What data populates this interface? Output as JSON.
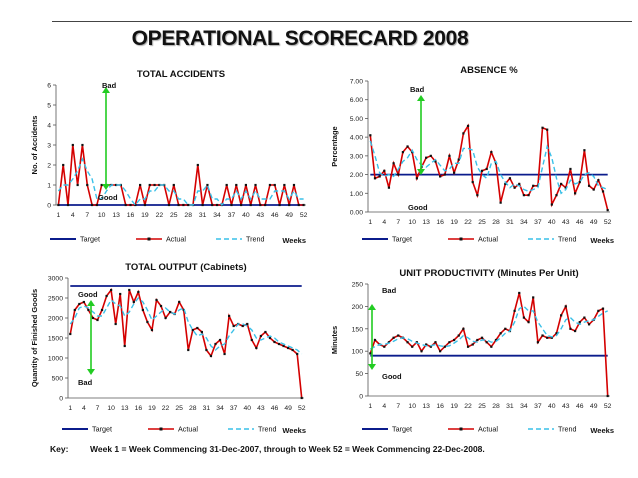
{
  "page": {
    "title": "OPERATIONAL SCORECARD 2008",
    "key_label": "Key:",
    "key_text": "Week 1 = Week Commencing 31-Dec-2007, through to Week 52 = Week Commencing 22-Dec-2008."
  },
  "colors": {
    "target": "#0b1c8c",
    "actual": "#d40000",
    "marker": "#111111",
    "trend": "#39c0e8",
    "arrow": "#22cc22"
  },
  "chart_data": [
    {
      "id": "accidents",
      "type": "line",
      "title": "TOTAL ACCIDENTS",
      "xlabel": "Weeks",
      "ylabel": "No. of Accidents",
      "ylim": [
        0,
        6
      ],
      "yticks": [
        "0",
        "1",
        "2",
        "3",
        "4",
        "5",
        "6"
      ],
      "xticks": [
        "1",
        "4",
        "7",
        "10",
        "13",
        "16",
        "19",
        "22",
        "25",
        "28",
        "31",
        "34",
        "37",
        "40",
        "43",
        "46",
        "49",
        "52"
      ],
      "legend": [
        "Target",
        "Actual",
        "Trend"
      ],
      "annotations": {
        "bad": "Bad",
        "good": "Good"
      },
      "series": [
        {
          "name": "Target",
          "values": [
            0,
            0,
            0,
            0,
            0,
            0,
            0,
            0,
            0,
            0,
            0,
            0,
            0,
            0,
            0,
            0,
            0,
            0,
            0,
            0,
            0,
            0,
            0,
            0,
            0,
            0,
            0,
            0,
            0,
            0,
            0,
            0,
            0,
            0,
            0,
            0,
            0,
            0,
            0,
            0,
            0,
            0,
            0,
            0,
            0,
            0,
            0,
            0,
            0,
            0,
            0,
            0
          ]
        },
        {
          "name": "Actual",
          "values": [
            0,
            2,
            0,
            3,
            1,
            3,
            1,
            0,
            0,
            1,
            1,
            1,
            1,
            1,
            0,
            0,
            0,
            1,
            0,
            1,
            1,
            1,
            1,
            0,
            1,
            0,
            0,
            0,
            0,
            2,
            0,
            1,
            0,
            0,
            0,
            1,
            0,
            1,
            0,
            1,
            0,
            1,
            0,
            0,
            1,
            1,
            0,
            1,
            0,
            1,
            0,
            0
          ]
        },
        {
          "name": "Trend",
          "values": [
            0.7,
            1.0,
            1.0,
            1.3,
            1.7,
            2.3,
            1.7,
            1.3,
            0.3,
            0.3,
            0.7,
            1.0,
            1.0,
            1.0,
            0.7,
            0.3,
            0,
            0.3,
            0.3,
            0.7,
            0.7,
            1.0,
            1.0,
            0.7,
            0.7,
            0.3,
            0.3,
            0,
            0,
            0.7,
            0.7,
            1.0,
            0.3,
            0.3,
            0,
            0.3,
            0.3,
            0.7,
            0.3,
            0.7,
            0.3,
            0.7,
            0.3,
            0.3,
            0.3,
            0.7,
            0.7,
            0.7,
            0.3,
            0.7,
            0.3,
            0.3
          ]
        }
      ]
    },
    {
      "id": "absence",
      "type": "line",
      "title": "ABSENCE %",
      "xlabel": "Weeks",
      "ylabel": "Percentage",
      "ylim": [
        0,
        7
      ],
      "yticks": [
        "0.00",
        "1.00",
        "2.00",
        "3.00",
        "4.00",
        "5.00",
        "6.00",
        "7.00"
      ],
      "xticks": [
        "1",
        "4",
        "7",
        "10",
        "13",
        "16",
        "19",
        "22",
        "25",
        "28",
        "31",
        "34",
        "37",
        "40",
        "43",
        "46",
        "49",
        "52"
      ],
      "legend": [
        "Target",
        "Actual",
        "Trend"
      ],
      "annotations": {
        "bad": "Bad",
        "good": "Good"
      },
      "series": [
        {
          "name": "Target",
          "values": [
            2,
            2,
            2,
            2,
            2,
            2,
            2,
            2,
            2,
            2,
            2,
            2,
            2,
            2,
            2,
            2,
            2,
            2,
            2,
            2,
            2,
            2,
            2,
            2,
            2,
            2,
            2,
            2,
            2,
            2,
            2,
            2,
            2,
            2,
            2,
            2,
            2,
            2,
            2,
            2,
            2,
            2,
            2,
            2,
            2,
            2,
            2,
            2,
            2,
            2,
            2,
            2
          ]
        },
        {
          "name": "Actual",
          "values": [
            4.1,
            1.8,
            1.9,
            2.2,
            1.3,
            2.6,
            2.0,
            3.2,
            3.5,
            3.2,
            1.8,
            2.4,
            2.9,
            3.0,
            2.7,
            1.9,
            2.0,
            3.0,
            2.1,
            2.8,
            4.2,
            4.6,
            1.6,
            0.9,
            2.2,
            2.3,
            3.2,
            2.6,
            0.5,
            1.5,
            1.8,
            1.3,
            1.5,
            0.9,
            0.9,
            1.4,
            1.4,
            4.5,
            4.4,
            0.4,
            0.9,
            1.5,
            1.3,
            2.3,
            1.0,
            1.6,
            3.3,
            1.4,
            1.2,
            1.7,
            1.1,
            0.1
          ]
        },
        {
          "name": "Trend",
          "values": [
            3.8,
            3.0,
            2.1,
            1.9,
            2.0,
            1.9,
            2.3,
            2.7,
            2.9,
            3.3,
            2.8,
            2.5,
            2.4,
            2.6,
            2.8,
            2.5,
            2.2,
            2.3,
            2.6,
            2.6,
            3.4,
            3.4,
            3.3,
            2.4,
            2.0,
            1.8,
            2.6,
            2.7,
            2.0,
            1.6,
            1.3,
            1.5,
            1.4,
            1.2,
            1.1,
            1.2,
            1.3,
            2.4,
            3.5,
            2.9,
            1.8,
            1.0,
            1.2,
            1.7,
            1.5,
            1.6,
            2.0,
            2.1,
            1.9,
            1.4,
            1.3,
            1.2
          ]
        }
      ]
    },
    {
      "id": "output",
      "type": "line",
      "title": "TOTAL OUTPUT (Cabinets)",
      "xlabel": "Weeks",
      "ylabel": "Quantity of Finished Goods",
      "ylim": [
        0,
        3000
      ],
      "yticks": [
        "0",
        "500",
        "1000",
        "1500",
        "2000",
        "2500",
        "3000"
      ],
      "xticks": [
        "1",
        "4",
        "7",
        "10",
        "13",
        "16",
        "19",
        "22",
        "25",
        "28",
        "31",
        "34",
        "37",
        "40",
        "43",
        "46",
        "49",
        "52"
      ],
      "legend": [
        "Target",
        "Actual",
        "Trend"
      ],
      "annotations": {
        "good": "Good",
        "bad": "Bad"
      },
      "series": [
        {
          "name": "Target",
          "values": [
            2800,
            2800,
            2800,
            2800,
            2800,
            2800,
            2800,
            2800,
            2800,
            2800,
            2800,
            2800,
            2800,
            2800,
            2800,
            2800,
            2800,
            2800,
            2800,
            2800,
            2800,
            2800,
            2800,
            2800,
            2800,
            2800,
            2800,
            2800,
            2800,
            2800,
            2800,
            2800,
            2800,
            2800,
            2800,
            2800,
            2800,
            2800,
            2800,
            2800,
            2800,
            2800,
            2800,
            2800,
            2800,
            2800,
            2800,
            2800,
            2800,
            2800,
            2800,
            2800
          ]
        },
        {
          "name": "Actual",
          "values": [
            1600,
            2200,
            2350,
            2400,
            2200,
            2000,
            1950,
            2200,
            2550,
            2700,
            1850,
            2600,
            1300,
            2700,
            2400,
            2650,
            2200,
            1900,
            1700,
            2450,
            2300,
            2000,
            2150,
            2100,
            2400,
            2200,
            1200,
            1700,
            1750,
            1650,
            1200,
            1050,
            1350,
            1450,
            1100,
            2050,
            1800,
            1850,
            1800,
            1850,
            1450,
            1250,
            1550,
            1650,
            1500,
            1400,
            1350,
            1300,
            1250,
            1200,
            1100,
            0
          ]
        },
        {
          "name": "Trend",
          "values": [
            1850,
            2000,
            2250,
            2300,
            2250,
            2150,
            2050,
            2050,
            2250,
            2450,
            2350,
            2300,
            2050,
            2150,
            2350,
            2500,
            2400,
            2200,
            1950,
            2050,
            2150,
            2250,
            2150,
            2100,
            2200,
            2250,
            1900,
            1700,
            1550,
            1600,
            1500,
            1300,
            1200,
            1300,
            1350,
            1550,
            1700,
            1850,
            1850,
            1800,
            1700,
            1500,
            1450,
            1500,
            1550,
            1500,
            1400,
            1350,
            1300,
            1250,
            1200,
            1100
          ]
        }
      ]
    },
    {
      "id": "productivity",
      "type": "line",
      "title": "UNIT PRODUCTIVITY (Minutes Per Unit)",
      "xlabel": "Weeks",
      "ylabel": "Minutes",
      "ylim": [
        0,
        250
      ],
      "yticks": [
        "0",
        "50",
        "100",
        "150",
        "200",
        "250"
      ],
      "xticks": [
        "1",
        "4",
        "7",
        "10",
        "13",
        "16",
        "19",
        "22",
        "25",
        "28",
        "31",
        "34",
        "37",
        "40",
        "43",
        "46",
        "49",
        "52"
      ],
      "legend": [
        "Target",
        "Actual",
        "Trend"
      ],
      "annotations": {
        "bad": "Bad",
        "good": "Good"
      },
      "series": [
        {
          "name": "Target",
          "values": [
            90,
            90,
            90,
            90,
            90,
            90,
            90,
            90,
            90,
            90,
            90,
            90,
            90,
            90,
            90,
            90,
            90,
            90,
            90,
            90,
            90,
            90,
            90,
            90,
            90,
            90,
            90,
            90,
            90,
            90,
            90,
            90,
            90,
            90,
            90,
            90,
            90,
            90,
            90,
            90,
            90,
            90,
            90,
            90,
            90,
            90,
            90,
            90,
            90,
            90,
            90,
            90
          ]
        },
        {
          "name": "Actual",
          "values": [
            95,
            125,
            115,
            110,
            120,
            130,
            135,
            130,
            120,
            110,
            120,
            100,
            115,
            110,
            120,
            100,
            110,
            120,
            125,
            135,
            150,
            110,
            115,
            125,
            130,
            120,
            110,
            125,
            140,
            150,
            145,
            190,
            230,
            175,
            165,
            220,
            120,
            135,
            130,
            130,
            140,
            180,
            200,
            150,
            145,
            165,
            175,
            160,
            170,
            190,
            195,
            0
          ]
        },
        {
          "name": "Trend",
          "values": [
            105,
            110,
            115,
            115,
            118,
            122,
            128,
            130,
            128,
            122,
            118,
            115,
            112,
            112,
            115,
            112,
            110,
            112,
            118,
            125,
            135,
            130,
            122,
            120,
            125,
            125,
            120,
            122,
            130,
            140,
            145,
            165,
            195,
            200,
            190,
            190,
            165,
            150,
            135,
            132,
            135,
            150,
            170,
            175,
            165,
            160,
            165,
            168,
            170,
            178,
            185,
            190
          ]
        }
      ]
    }
  ]
}
